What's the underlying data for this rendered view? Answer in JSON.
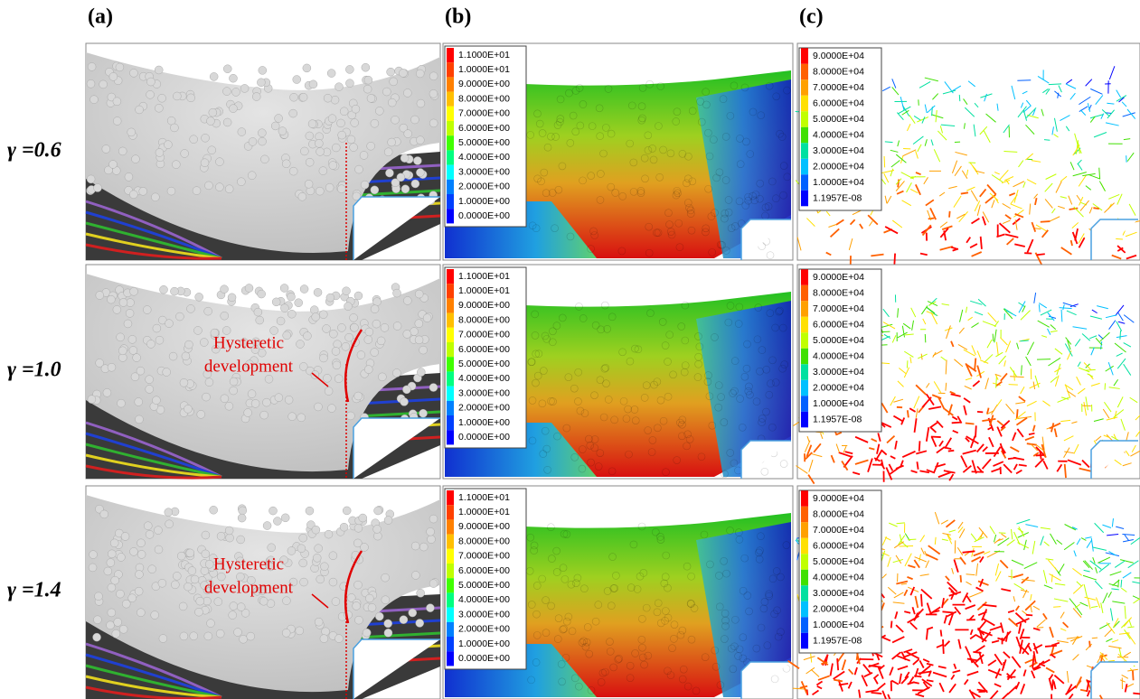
{
  "columns": [
    {
      "label": "(a)"
    },
    {
      "label": "(b)"
    },
    {
      "label": "(c)"
    }
  ],
  "rows": [
    {
      "label": "γ =0.6"
    },
    {
      "label": "γ =1.0",
      "annotation": [
        "Hysteretic",
        "development"
      ]
    },
    {
      "label": "γ =1.4",
      "annotation": [
        "Hysteretic",
        "development"
      ]
    }
  ],
  "legend_b": {
    "entries": [
      "1.1000E+01",
      "1.0000E+01",
      "9.0000E+00",
      "8.0000E+00",
      "7.0000E+00",
      "6.0000E+00",
      "5.0000E+00",
      "4.0000E+00",
      "3.0000E+00",
      "2.0000E+00",
      "1.0000E+00",
      "0.0000E+00"
    ]
  },
  "legend_c": {
    "entries": [
      "9.0000E+04",
      "8.0000E+04",
      "7.0000E+04",
      "6.0000E+04",
      "5.0000E+04",
      "4.0000E+04",
      "3.0000E+04",
      "2.0000E+04",
      "1.0000E+04",
      "1.1957E-08"
    ]
  }
}
